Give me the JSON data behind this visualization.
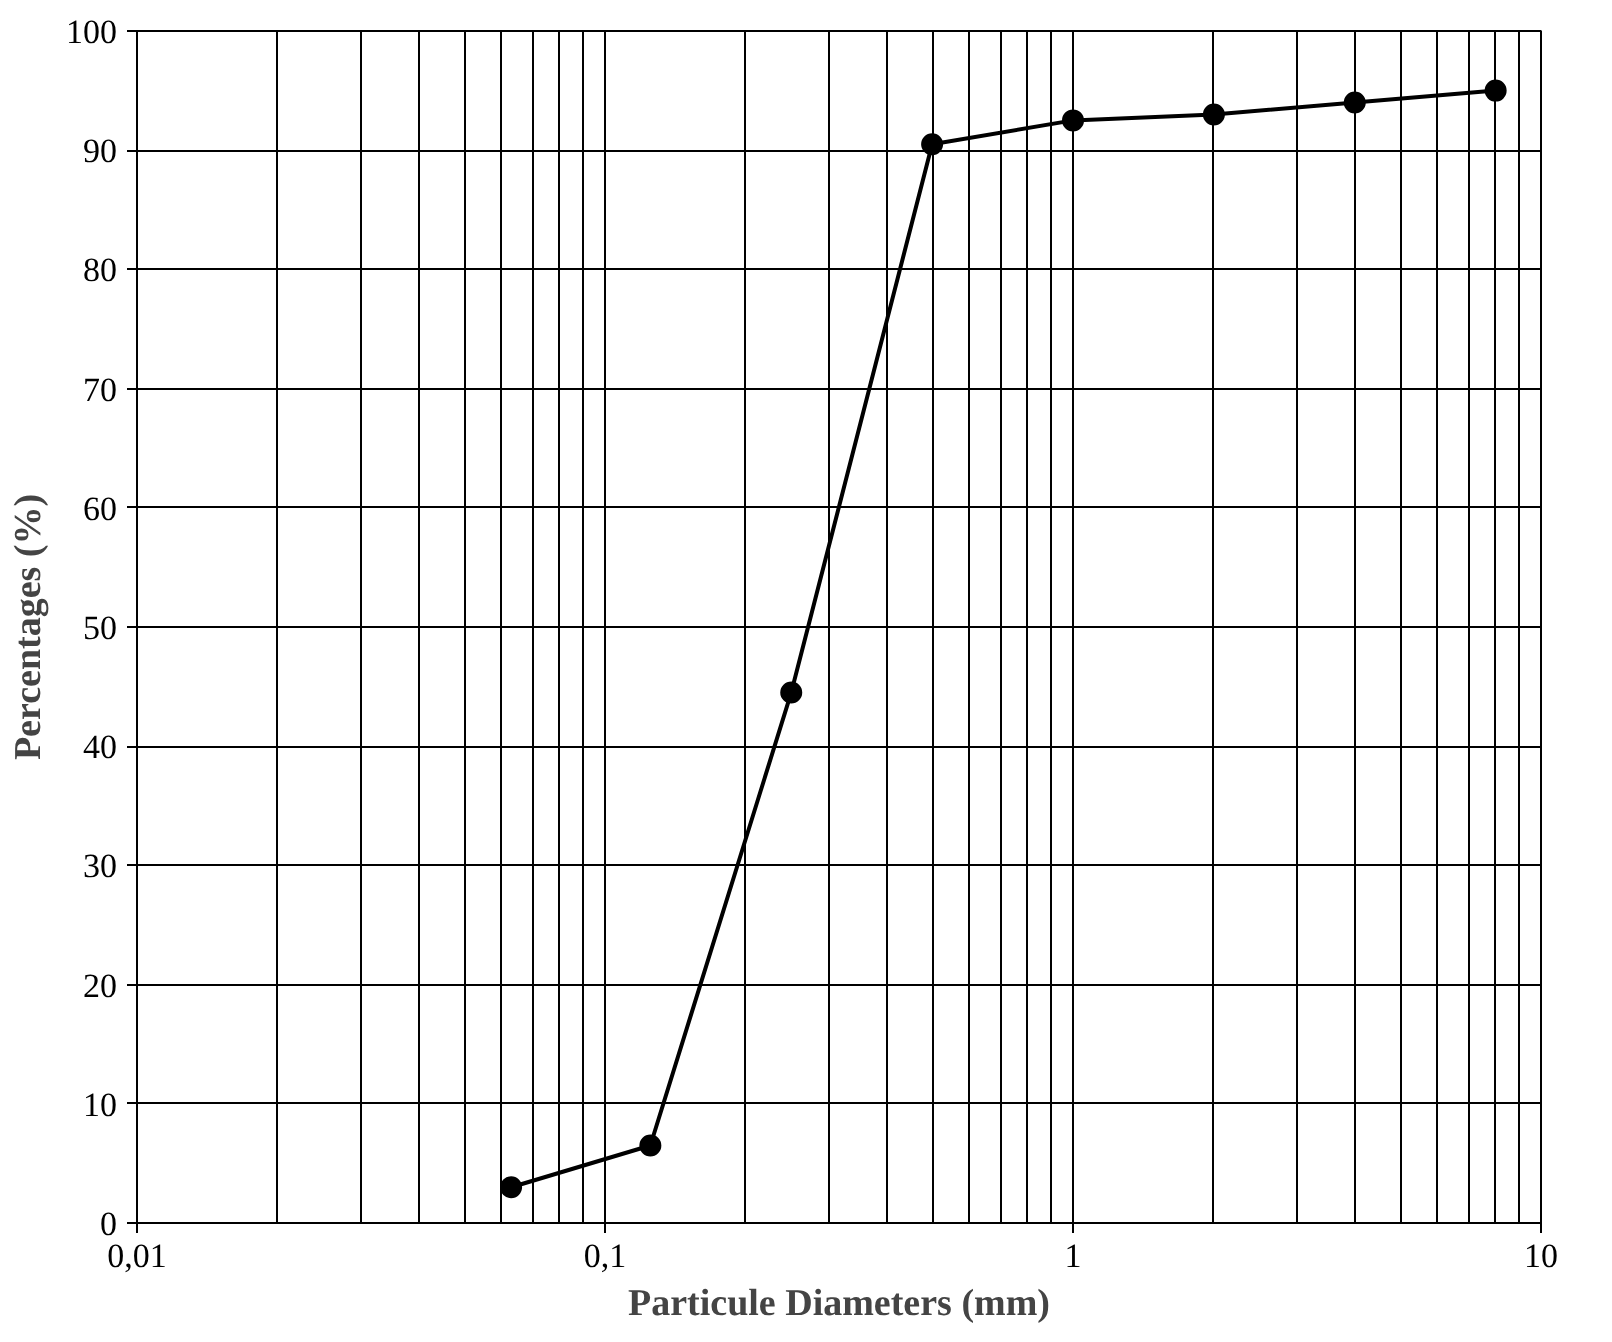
{
  "chart_data": {
    "type": "line",
    "xlabel": "Particule Diameters (mm)",
    "ylabel": "Percentages (%)",
    "log": "x",
    "xlim": [
      0.01,
      10
    ],
    "ylim": [
      0,
      100
    ],
    "xticks": [
      {
        "value": 0.01,
        "label": "0,01"
      },
      {
        "value": 0.1,
        "label": "0,1"
      },
      1,
      10
    ],
    "yticks": [
      0,
      10,
      20,
      30,
      40,
      50,
      60,
      70,
      80,
      90,
      100
    ],
    "grid": true,
    "marker": "circle",
    "line_style": "solid",
    "series": [
      {
        "color": "#000000",
        "x": [
          0.063,
          0.125,
          0.25,
          0.5,
          1,
          2,
          4,
          8
        ],
        "values": [
          3,
          6.5,
          44.5,
          90.5,
          92.5,
          93,
          94,
          95
        ]
      }
    ]
  }
}
